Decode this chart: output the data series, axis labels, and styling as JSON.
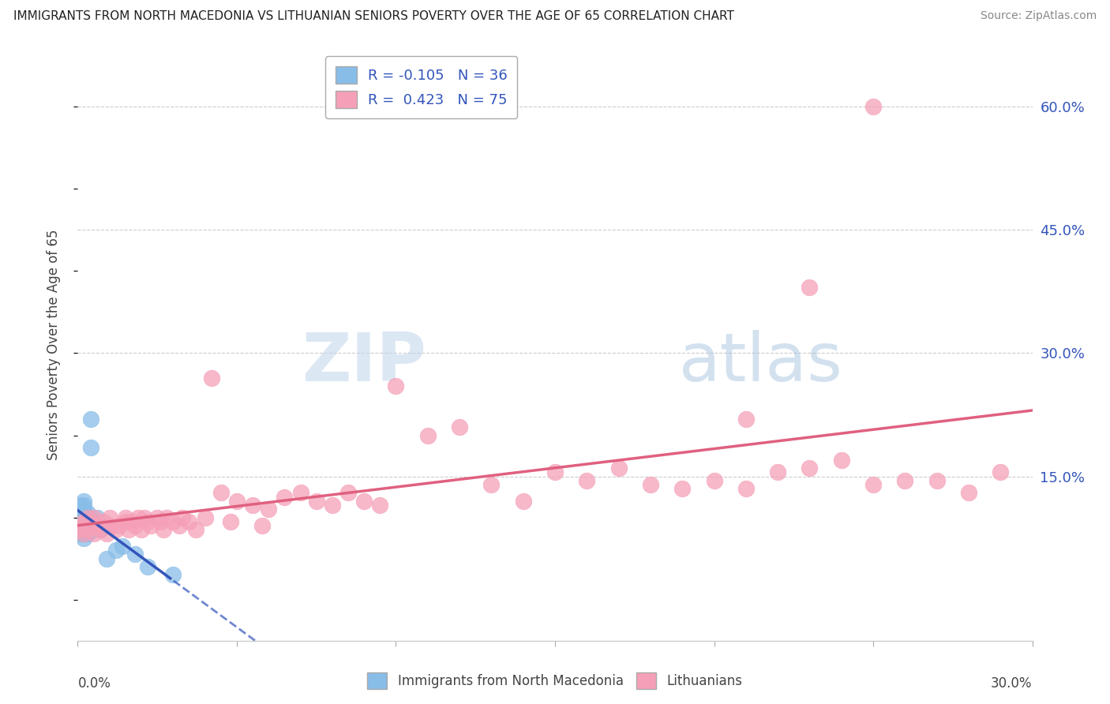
{
  "title": "IMMIGRANTS FROM NORTH MACEDONIA VS LITHUANIAN SENIORS POVERTY OVER THE AGE OF 65 CORRELATION CHART",
  "source": "Source: ZipAtlas.com",
  "ylabel": "Seniors Poverty Over the Age of 65",
  "right_ytick_vals": [
    0.15,
    0.3,
    0.45,
    0.6
  ],
  "right_ytick_labels": [
    "15.0%",
    "30.0%",
    "45.0%",
    "60.0%"
  ],
  "xlim": [
    0.0,
    0.3
  ],
  "ylim": [
    -0.05,
    0.67
  ],
  "blue_R": -0.105,
  "blue_N": 36,
  "pink_R": 0.423,
  "pink_N": 75,
  "blue_color": "#88bde8",
  "pink_color": "#f5a0b8",
  "blue_line_color": "#3355bb",
  "pink_line_color": "#e06080",
  "legend_label_blue": "Immigrants from North Macedonia",
  "legend_label_pink": "Lithuanians",
  "watermark_zip": "ZIP",
  "watermark_atlas": "atlas",
  "blue_scatter_x": [
    0.001,
    0.001,
    0.001,
    0.001,
    0.001,
    0.001,
    0.001,
    0.002,
    0.002,
    0.002,
    0.002,
    0.002,
    0.002,
    0.002,
    0.002,
    0.002,
    0.002,
    0.003,
    0.003,
    0.003,
    0.003,
    0.003,
    0.003,
    0.004,
    0.004,
    0.004,
    0.005,
    0.005,
    0.006,
    0.007,
    0.009,
    0.012,
    0.014,
    0.018,
    0.022,
    0.03
  ],
  "blue_scatter_y": [
    0.08,
    0.09,
    0.095,
    0.1,
    0.105,
    0.11,
    0.115,
    0.075,
    0.08,
    0.085,
    0.09,
    0.095,
    0.1,
    0.105,
    0.11,
    0.115,
    0.12,
    0.08,
    0.085,
    0.09,
    0.095,
    0.1,
    0.105,
    0.185,
    0.22,
    0.09,
    0.085,
    0.095,
    0.1,
    0.085,
    0.05,
    0.06,
    0.065,
    0.055,
    0.04,
    0.03
  ],
  "pink_scatter_x": [
    0.001,
    0.001,
    0.002,
    0.002,
    0.003,
    0.003,
    0.004,
    0.004,
    0.005,
    0.005,
    0.006,
    0.007,
    0.008,
    0.009,
    0.01,
    0.01,
    0.012,
    0.013,
    0.015,
    0.015,
    0.016,
    0.017,
    0.018,
    0.019,
    0.02,
    0.021,
    0.022,
    0.023,
    0.025,
    0.026,
    0.027,
    0.028,
    0.03,
    0.032,
    0.033,
    0.035,
    0.037,
    0.04,
    0.042,
    0.045,
    0.048,
    0.05,
    0.055,
    0.058,
    0.06,
    0.065,
    0.07,
    0.075,
    0.08,
    0.085,
    0.09,
    0.095,
    0.1,
    0.11,
    0.12,
    0.13,
    0.14,
    0.15,
    0.16,
    0.17,
    0.18,
    0.19,
    0.2,
    0.21,
    0.22,
    0.23,
    0.24,
    0.25,
    0.26,
    0.27,
    0.28,
    0.29,
    0.25,
    0.23,
    0.21
  ],
  "pink_scatter_y": [
    0.085,
    0.09,
    0.08,
    0.095,
    0.1,
    0.085,
    0.09,
    0.095,
    0.08,
    0.1,
    0.09,
    0.085,
    0.095,
    0.08,
    0.09,
    0.1,
    0.085,
    0.09,
    0.095,
    0.1,
    0.085,
    0.095,
    0.09,
    0.1,
    0.085,
    0.1,
    0.095,
    0.09,
    0.1,
    0.095,
    0.085,
    0.1,
    0.095,
    0.09,
    0.1,
    0.095,
    0.085,
    0.1,
    0.27,
    0.13,
    0.095,
    0.12,
    0.115,
    0.09,
    0.11,
    0.125,
    0.13,
    0.12,
    0.115,
    0.13,
    0.12,
    0.115,
    0.26,
    0.2,
    0.21,
    0.14,
    0.12,
    0.155,
    0.145,
    0.16,
    0.14,
    0.135,
    0.145,
    0.135,
    0.155,
    0.16,
    0.17,
    0.14,
    0.145,
    0.145,
    0.13,
    0.155,
    0.6,
    0.38,
    0.22
  ]
}
